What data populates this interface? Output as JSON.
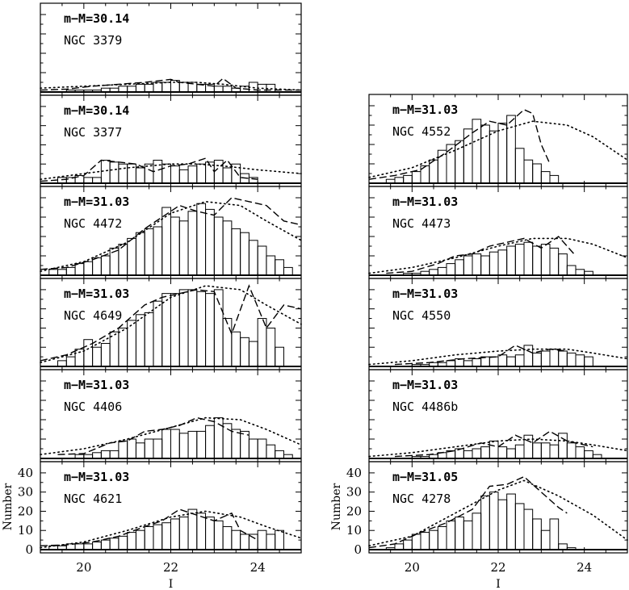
{
  "chart_data": {
    "type": "bar",
    "xlabel": "I",
    "ylabel": "Number",
    "xlim": [
      19,
      25
    ],
    "ylim": [
      0,
      45
    ],
    "xticks": [
      "20",
      "22",
      "24"
    ],
    "yticks": [
      "0",
      "10",
      "20",
      "30",
      "40"
    ],
    "bin_width": 0.2,
    "panels": [
      {
        "id": "ngc3379",
        "column": "left",
        "row": 0,
        "modulus": "m−M=30.14",
        "galaxy": "NGC 3379",
        "bin_start": 19.4,
        "hist": [
          0,
          1,
          1,
          1,
          1,
          2,
          2,
          3,
          3,
          4,
          4,
          5,
          5,
          6,
          5,
          5,
          4,
          4,
          3,
          3,
          2,
          3,
          5,
          4,
          4,
          0
        ],
        "dashed": [
          [
            19.0,
            1
          ],
          [
            19.6,
            1.5
          ],
          [
            20.2,
            3
          ],
          [
            20.8,
            4
          ],
          [
            21.4,
            5
          ],
          [
            21.8,
            6
          ],
          [
            22.0,
            6.5
          ],
          [
            22.2,
            5
          ],
          [
            22.6,
            4
          ],
          [
            23.0,
            3
          ],
          [
            23.2,
            7
          ],
          [
            23.5,
            2
          ],
          [
            24.0,
            1
          ],
          [
            25.0,
            1
          ]
        ],
        "dotted": [
          [
            19.0,
            2
          ],
          [
            20.0,
            3
          ],
          [
            21.0,
            4
          ],
          [
            22.0,
            5
          ],
          [
            22.6,
            5
          ],
          [
            23.2,
            4
          ],
          [
            24.0,
            2
          ],
          [
            25.0,
            1
          ]
        ]
      },
      {
        "id": "ngc3377",
        "column": "left",
        "row": 1,
        "modulus": "m−M=30.14",
        "galaxy": "NGC 3377",
        "bin_start": 19.4,
        "hist": [
          3,
          3,
          4,
          3,
          3,
          12,
          11,
          10,
          10,
          8,
          10,
          12,
          10,
          9,
          7,
          9,
          10,
          11,
          12,
          8,
          10,
          5,
          3
        ],
        "dashed": [
          [
            19.0,
            1
          ],
          [
            19.6,
            2
          ],
          [
            20.0,
            4
          ],
          [
            20.4,
            12
          ],
          [
            20.8,
            11
          ],
          [
            21.2,
            10
          ],
          [
            21.6,
            6
          ],
          [
            22.0,
            9
          ],
          [
            22.4,
            10
          ],
          [
            22.8,
            13
          ],
          [
            23.0,
            6
          ],
          [
            23.3,
            12
          ],
          [
            23.6,
            3
          ],
          [
            24.0,
            2
          ]
        ],
        "dotted": [
          [
            19.0,
            2
          ],
          [
            20.0,
            5
          ],
          [
            21.0,
            8
          ],
          [
            22.0,
            10
          ],
          [
            22.6,
            10
          ],
          [
            23.2,
            9
          ],
          [
            24.0,
            7
          ],
          [
            25.0,
            5
          ]
        ]
      },
      {
        "id": "ngc4472",
        "column": "left",
        "row": 2,
        "modulus": "m−M=31.03",
        "galaxy": "NGC 4472",
        "bin_start": 19.2,
        "hist": [
          3,
          3,
          4,
          6,
          7,
          9,
          10,
          14,
          16,
          19,
          22,
          24,
          25,
          35,
          30,
          28,
          33,
          37,
          34,
          30,
          28,
          24,
          22,
          18,
          15,
          10,
          8,
          4
        ],
        "dashed": [
          [
            19.0,
            3
          ],
          [
            19.6,
            4
          ],
          [
            20.2,
            8
          ],
          [
            20.8,
            13
          ],
          [
            21.4,
            24
          ],
          [
            21.8,
            30
          ],
          [
            22.2,
            36
          ],
          [
            22.6,
            33
          ],
          [
            23.0,
            31
          ],
          [
            23.4,
            40
          ],
          [
            23.8,
            38
          ],
          [
            24.2,
            36
          ],
          [
            24.6,
            28
          ],
          [
            25.0,
            26
          ]
        ],
        "dotted": [
          [
            19.0,
            2
          ],
          [
            20.0,
            7
          ],
          [
            21.0,
            17
          ],
          [
            22.0,
            32
          ],
          [
            22.8,
            38
          ],
          [
            23.6,
            36
          ],
          [
            24.2,
            28
          ],
          [
            25.0,
            18
          ]
        ]
      },
      {
        "id": "ngc4649",
        "column": "left",
        "row": 3,
        "modulus": "m−M=31.03",
        "galaxy": "NGC 4649",
        "bin_start": 19.4,
        "hist": [
          3,
          5,
          9,
          14,
          10,
          12,
          18,
          20,
          24,
          27,
          28,
          34,
          38,
          38,
          40,
          40,
          39,
          38,
          40,
          25,
          18,
          15,
          13,
          25,
          20,
          10
        ],
        "dashed": [
          [
            19.0,
            3
          ],
          [
            19.6,
            6
          ],
          [
            20.2,
            12
          ],
          [
            20.8,
            20
          ],
          [
            21.4,
            32
          ],
          [
            21.8,
            36
          ],
          [
            22.2,
            38
          ],
          [
            22.6,
            40
          ],
          [
            23.0,
            39
          ],
          [
            23.4,
            17
          ],
          [
            23.8,
            42
          ],
          [
            24.2,
            20
          ],
          [
            24.6,
            32
          ],
          [
            25.0,
            30
          ]
        ],
        "dotted": [
          [
            19.0,
            2
          ],
          [
            20.0,
            8
          ],
          [
            21.0,
            20
          ],
          [
            22.0,
            36
          ],
          [
            22.8,
            42
          ],
          [
            23.6,
            40
          ],
          [
            24.2,
            32
          ],
          [
            25.0,
            22
          ]
        ]
      },
      {
        "id": "ngc4406",
        "column": "left",
        "row": 4,
        "modulus": "m−M=31.03",
        "galaxy": "NGC 4406",
        "bin_start": 19.8,
        "hist": [
          2,
          2,
          3,
          4,
          4,
          9,
          10,
          8,
          10,
          10,
          15,
          15,
          13,
          14,
          14,
          17,
          21,
          18,
          15,
          14,
          10,
          10,
          7,
          4,
          2
        ],
        "dashed": [
          [
            19.4,
            2
          ],
          [
            20.0,
            2.5
          ],
          [
            20.6,
            8
          ],
          [
            21.0,
            9
          ],
          [
            21.4,
            14
          ],
          [
            21.8,
            15
          ],
          [
            22.2,
            17
          ],
          [
            22.6,
            21
          ],
          [
            23.0,
            19
          ],
          [
            23.4,
            14
          ],
          [
            23.8,
            12
          ]
        ],
        "dotted": [
          [
            19.0,
            2
          ],
          [
            20.0,
            5
          ],
          [
            21.0,
            10
          ],
          [
            22.0,
            16
          ],
          [
            22.8,
            21
          ],
          [
            23.6,
            20
          ],
          [
            24.2,
            15
          ],
          [
            25.0,
            7
          ]
        ]
      },
      {
        "id": "ngc4621",
        "column": "left",
        "row": 5,
        "modulus": "m−M=31.03",
        "galaxy": "NGC 4621",
        "bin_start": 19.2,
        "hist": [
          2,
          2,
          3,
          3,
          3,
          4,
          5,
          6,
          7,
          9,
          10,
          12,
          13,
          14,
          16,
          17,
          21,
          19,
          17,
          15,
          12,
          10,
          8,
          8,
          10,
          8,
          10
        ],
        "dashed": [
          [
            19.0,
            2
          ],
          [
            19.6,
            2.5
          ],
          [
            20.2,
            4
          ],
          [
            20.8,
            7
          ],
          [
            21.4,
            12
          ],
          [
            21.8,
            15
          ],
          [
            22.2,
            21
          ],
          [
            22.6,
            18
          ],
          [
            23.0,
            15
          ],
          [
            23.4,
            19
          ],
          [
            23.6,
            10
          ],
          [
            24.0,
            5
          ]
        ],
        "dotted": [
          [
            19.0,
            1
          ],
          [
            20.0,
            4
          ],
          [
            21.0,
            10
          ],
          [
            22.0,
            17
          ],
          [
            22.8,
            20
          ],
          [
            23.6,
            17
          ],
          [
            24.2,
            12
          ],
          [
            25.0,
            6
          ]
        ]
      },
      {
        "id": "ngc4552",
        "column": "right",
        "row": 1,
        "modulus": "m−M=31.03",
        "galaxy": "NGC 4552",
        "bin_start": 19.4,
        "hist": [
          2,
          3,
          4,
          6,
          9,
          12,
          17,
          20,
          22,
          28,
          33,
          30,
          27,
          31,
          35,
          18,
          12,
          10,
          6,
          4
        ],
        "dashed": [
          [
            19.0,
            2
          ],
          [
            19.6,
            4
          ],
          [
            20.2,
            7
          ],
          [
            20.8,
            16
          ],
          [
            21.4,
            26
          ],
          [
            21.8,
            32
          ],
          [
            22.2,
            30
          ],
          [
            22.6,
            38
          ],
          [
            22.8,
            36
          ],
          [
            23.0,
            20
          ],
          [
            23.2,
            10
          ]
        ],
        "dotted": [
          [
            19.0,
            3
          ],
          [
            20.0,
            8
          ],
          [
            21.0,
            17
          ],
          [
            22.0,
            27
          ],
          [
            22.8,
            32
          ],
          [
            23.6,
            30
          ],
          [
            24.2,
            24
          ],
          [
            25.0,
            12
          ]
        ]
      },
      {
        "id": "ngc4473",
        "column": "right",
        "row": 2,
        "modulus": "m−M=31.03",
        "galaxy": "NGC 4473",
        "bin_start": 19.8,
        "hist": [
          1,
          1,
          2,
          3,
          4,
          6,
          8,
          10,
          11,
          10,
          12,
          13,
          15,
          16,
          17,
          15,
          16,
          14,
          11,
          5,
          3,
          2
        ],
        "dashed": [
          [
            19.4,
            1
          ],
          [
            20.0,
            2
          ],
          [
            20.6,
            6
          ],
          [
            21.0,
            10
          ],
          [
            21.4,
            11
          ],
          [
            21.8,
            15
          ],
          [
            22.2,
            17
          ],
          [
            22.6,
            19
          ],
          [
            23.0,
            14
          ],
          [
            23.4,
            20
          ],
          [
            23.8,
            10
          ]
        ],
        "dotted": [
          [
            19.0,
            1
          ],
          [
            20.0,
            4
          ],
          [
            21.0,
            9
          ],
          [
            22.0,
            15
          ],
          [
            22.8,
            19
          ],
          [
            23.6,
            19
          ],
          [
            24.2,
            16
          ],
          [
            25.0,
            9
          ]
        ]
      },
      {
        "id": "ngc4550",
        "column": "right",
        "row": 3,
        "modulus": "m−M=31.03",
        "galaxy": "NGC 4550",
        "bin_start": 20.0,
        "hist": [
          1,
          1,
          2,
          2,
          3,
          4,
          3,
          4,
          5,
          5,
          6,
          5,
          6,
          11,
          7,
          8,
          9,
          8,
          7,
          6,
          5
        ],
        "dashed": [
          [
            19.6,
            1
          ],
          [
            20.4,
            2
          ],
          [
            21.2,
            4
          ],
          [
            22.0,
            5
          ],
          [
            22.4,
            11
          ],
          [
            22.8,
            7
          ],
          [
            23.2,
            9
          ],
          [
            23.6,
            8
          ]
        ],
        "dotted": [
          [
            19.0,
            1
          ],
          [
            20.0,
            3
          ],
          [
            21.0,
            6
          ],
          [
            22.0,
            8
          ],
          [
            22.8,
            9
          ],
          [
            23.6,
            9
          ],
          [
            24.2,
            7
          ],
          [
            25.0,
            4
          ]
        ]
      },
      {
        "id": "ngc4486b",
        "column": "right",
        "row": 4,
        "modulus": "m−M=31.03",
        "galaxy": "NGC 4486b",
        "bin_start": 20.0,
        "hist": [
          1,
          1,
          2,
          3,
          4,
          5,
          4,
          5,
          6,
          9,
          6,
          5,
          7,
          12,
          8,
          8,
          7,
          13,
          8,
          6,
          4,
          2
        ],
        "dashed": [
          [
            19.6,
            1
          ],
          [
            20.4,
            2
          ],
          [
            21.0,
            4
          ],
          [
            21.6,
            8
          ],
          [
            22.0,
            6
          ],
          [
            22.4,
            12
          ],
          [
            22.8,
            8
          ],
          [
            23.2,
            14
          ],
          [
            23.6,
            9
          ],
          [
            24.2,
            6
          ]
        ],
        "dotted": [
          [
            19.0,
            1
          ],
          [
            20.0,
            3
          ],
          [
            21.0,
            6
          ],
          [
            22.0,
            9
          ],
          [
            22.8,
            10
          ],
          [
            23.6,
            9
          ],
          [
            24.2,
            7
          ],
          [
            25.0,
            4
          ]
        ]
      },
      {
        "id": "ngc4278",
        "column": "right",
        "row": 5,
        "modulus": "m−M=31.05",
        "galaxy": "NGC 4278",
        "bin_start": 19.4,
        "hist": [
          1,
          3,
          5,
          8,
          9,
          10,
          12,
          15,
          17,
          15,
          19,
          28,
          30,
          26,
          29,
          24,
          21,
          16,
          10,
          16,
          3,
          1
        ],
        "dashed": [
          [
            19.0,
            1
          ],
          [
            19.6,
            3
          ],
          [
            20.2,
            9
          ],
          [
            20.8,
            14
          ],
          [
            21.4,
            21
          ],
          [
            21.8,
            33
          ],
          [
            22.2,
            34
          ],
          [
            22.6,
            38
          ],
          [
            23.0,
            30
          ],
          [
            23.4,
            22
          ],
          [
            23.6,
            19
          ]
        ],
        "dotted": [
          [
            19.0,
            2
          ],
          [
            20.0,
            7
          ],
          [
            21.0,
            19
          ],
          [
            22.0,
            31
          ],
          [
            22.6,
            36
          ],
          [
            23.4,
            28
          ],
          [
            24.2,
            18
          ],
          [
            25.0,
            5
          ]
        ]
      }
    ]
  }
}
